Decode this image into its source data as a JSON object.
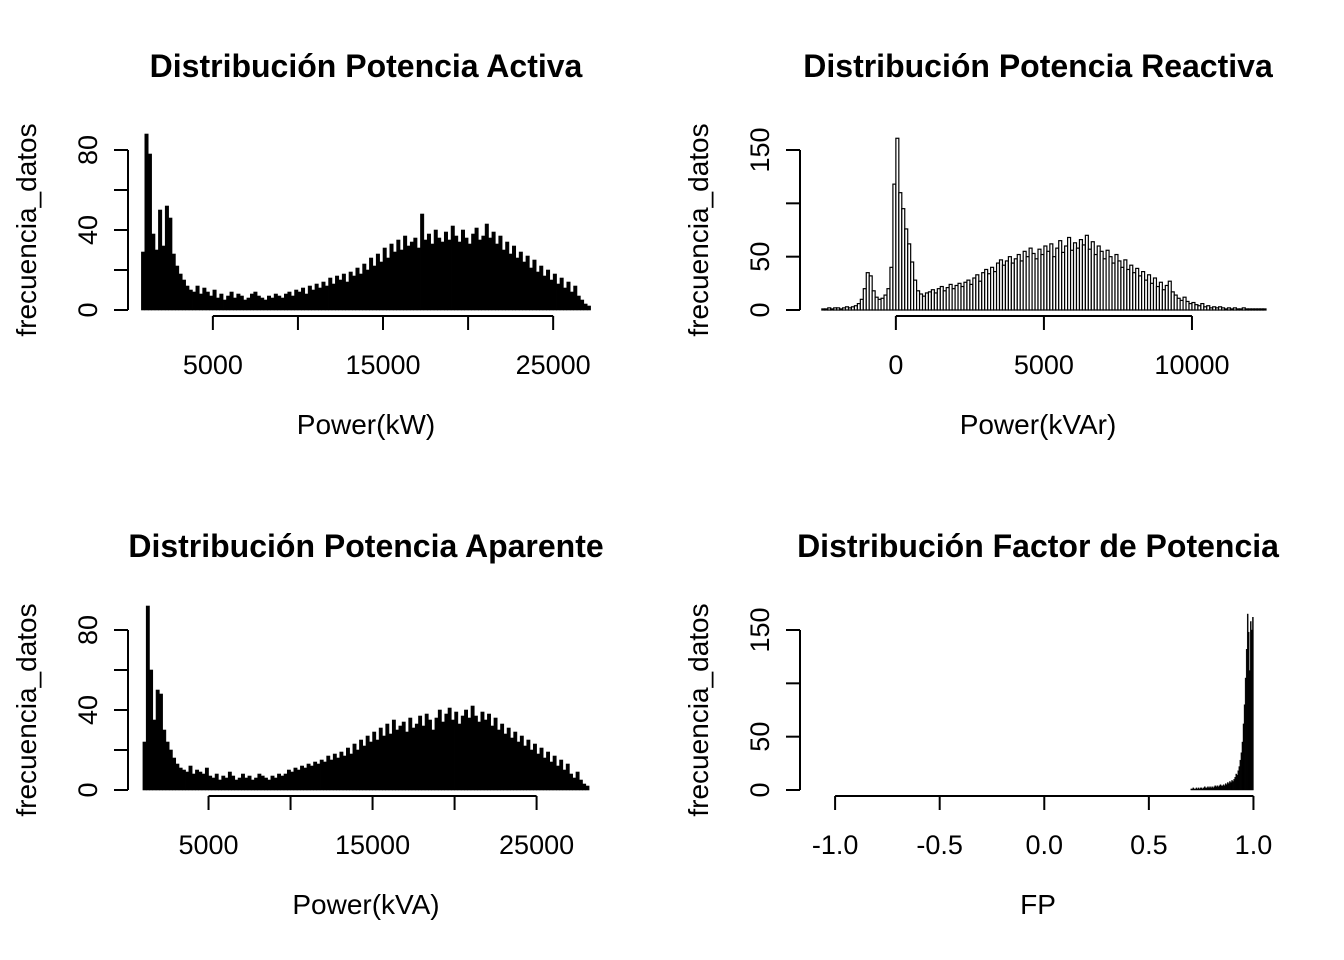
{
  "figure": {
    "background": "#ffffff",
    "foreground": "#000000",
    "layout": "2x2-histogram-grid"
  },
  "chart_data": [
    {
      "type": "bar",
      "subtype": "histogram",
      "title": "Distribución Potencia Activa",
      "xlabel": "Power(kW)",
      "ylabel": "frecuencia_datos",
      "bar_style": "solid",
      "grid": false,
      "legend": null,
      "bin_start": 800,
      "bin_width": 200,
      "xlim": [
        600,
        27400
      ],
      "ylim": [
        0,
        80
      ],
      "x_ticks": [
        5000,
        10000,
        15000,
        20000,
        25000
      ],
      "x_tick_labels": [
        "5000",
        "",
        "15000",
        "",
        "25000"
      ],
      "y_ticks": [
        0,
        20,
        40,
        60,
        80
      ],
      "y_tick_labels": [
        "0",
        "",
        "40",
        "",
        "80"
      ],
      "values": [
        29,
        88,
        78,
        38,
        30,
        50,
        32,
        52,
        46,
        28,
        22,
        18,
        15,
        12,
        10,
        9,
        12,
        8,
        11,
        9,
        7,
        10,
        6,
        8,
        5,
        7,
        9,
        6,
        8,
        7,
        5,
        6,
        8,
        9,
        7,
        6,
        5,
        7,
        6,
        8,
        7,
        6,
        8,
        9,
        7,
        10,
        9,
        11,
        8,
        12,
        10,
        13,
        11,
        14,
        12,
        16,
        13,
        17,
        15,
        18,
        14,
        19,
        17,
        21,
        18,
        23,
        20,
        26,
        22,
        28,
        24,
        31,
        26,
        33,
        29,
        35,
        30,
        37,
        32,
        34,
        36,
        31,
        48,
        35,
        38,
        33,
        40,
        36,
        34,
        39,
        35,
        42,
        37,
        34,
        40,
        36,
        33,
        38,
        41,
        35,
        37,
        43,
        36,
        39,
        33,
        37,
        30,
        34,
        28,
        32,
        26,
        29,
        24,
        27,
        21,
        25,
        19,
        22,
        17,
        20,
        15,
        18,
        13,
        16,
        11,
        14,
        9,
        12,
        7,
        5,
        3,
        2
      ]
    },
    {
      "type": "bar",
      "subtype": "histogram",
      "title": "Distribución Potencia Reactiva",
      "xlabel": "Power(kVAr)",
      "ylabel": "frecuencia_datos",
      "bar_style": "outline",
      "grid": false,
      "legend": null,
      "bin_start": -2500,
      "bin_width": 100,
      "xlim": [
        -2900,
        12500
      ],
      "ylim": [
        0,
        150
      ],
      "x_ticks": [
        0,
        5000,
        10000
      ],
      "x_tick_labels": [
        "0",
        "5000",
        "10000"
      ],
      "y_ticks": [
        0,
        50,
        100,
        150
      ],
      "y_tick_labels": [
        "0",
        "50",
        "",
        "150"
      ],
      "values": [
        1,
        1,
        2,
        1,
        2,
        2,
        1,
        2,
        3,
        2,
        3,
        4,
        6,
        10,
        20,
        35,
        32,
        18,
        12,
        10,
        11,
        14,
        20,
        40,
        118,
        161,
        110,
        95,
        76,
        62,
        45,
        28,
        18,
        15,
        13,
        16,
        17,
        19,
        16,
        20,
        22,
        18,
        21,
        24,
        20,
        23,
        25,
        22,
        26,
        28,
        24,
        30,
        33,
        27,
        35,
        38,
        34,
        40,
        36,
        44,
        47,
        42,
        46,
        50,
        44,
        48,
        52,
        46,
        55,
        50,
        58,
        53,
        48,
        57,
        52,
        60,
        55,
        62,
        50,
        58,
        65,
        54,
        60,
        68,
        56,
        63,
        58,
        66,
        61,
        70,
        57,
        64,
        52,
        60,
        55,
        48,
        56,
        50,
        44,
        52,
        46,
        40,
        47,
        38,
        42,
        35,
        39,
        32,
        36,
        28,
        33,
        25,
        30,
        22,
        26,
        19,
        23,
        27,
        17,
        14,
        11,
        9,
        12,
        8,
        6,
        7,
        5,
        4,
        6,
        3,
        4,
        2,
        3,
        2,
        3,
        2,
        1,
        2,
        1,
        2,
        1,
        1,
        2,
        1,
        1,
        1,
        1,
        1,
        1,
        1
      ]
    },
    {
      "type": "bar",
      "subtype": "histogram",
      "title": "Distribución Potencia Aparente",
      "xlabel": "Power(kVA)",
      "ylabel": "frecuencia_datos",
      "bar_style": "solid",
      "grid": false,
      "legend": null,
      "bin_start": 1000,
      "bin_width": 200,
      "xlim": [
        700,
        28500
      ],
      "ylim": [
        0,
        80
      ],
      "x_ticks": [
        5000,
        10000,
        15000,
        20000,
        25000
      ],
      "x_tick_labels": [
        "5000",
        "",
        "15000",
        "",
        "25000"
      ],
      "y_ticks": [
        0,
        20,
        40,
        60,
        80
      ],
      "y_tick_labels": [
        "0",
        "",
        "40",
        "",
        "80"
      ],
      "values": [
        24,
        92,
        60,
        35,
        50,
        48,
        30,
        24,
        20,
        16,
        13,
        11,
        10,
        9,
        12,
        8,
        10,
        9,
        8,
        11,
        7,
        6,
        8,
        5,
        7,
        6,
        9,
        7,
        5,
        6,
        8,
        6,
        7,
        5,
        6,
        8,
        7,
        6,
        5,
        7,
        6,
        8,
        7,
        8,
        10,
        9,
        11,
        10,
        12,
        11,
        13,
        12,
        14,
        13,
        15,
        14,
        17,
        15,
        18,
        16,
        19,
        17,
        21,
        18,
        23,
        20,
        25,
        22,
        27,
        24,
        29,
        25,
        31,
        27,
        33,
        28,
        35,
        30,
        32,
        34,
        29,
        36,
        31,
        33,
        37,
        32,
        38,
        35,
        30,
        36,
        40,
        34,
        38,
        41,
        35,
        39,
        33,
        37,
        40,
        36,
        42,
        37,
        34,
        39,
        35,
        38,
        32,
        36,
        30,
        33,
        28,
        31,
        26,
        29,
        24,
        27,
        22,
        25,
        20,
        23,
        18,
        21,
        16,
        19,
        14,
        17,
        12,
        15,
        10,
        13,
        8,
        6,
        9,
        5,
        3,
        2
      ]
    },
    {
      "type": "bar",
      "subtype": "histogram",
      "title": "Distribución Factor de Potencia",
      "xlabel": "FP",
      "ylabel": "frecuencia_datos",
      "bar_style": "solid-thin",
      "grid": false,
      "legend": null,
      "bin_start": 0.7,
      "bin_width": 0.005,
      "xlim": [
        -1.12,
        1.06
      ],
      "ylim": [
        0,
        150
      ],
      "x_ticks": [
        -1.0,
        -0.5,
        0.0,
        0.5,
        1.0
      ],
      "x_tick_labels": [
        "-1.0",
        "-0.5",
        "0.0",
        "0.5",
        "1.0"
      ],
      "y_ticks": [
        0,
        50,
        100,
        150
      ],
      "y_tick_labels": [
        "0",
        "50",
        "",
        "150"
      ],
      "values": [
        1,
        1,
        2,
        1,
        1,
        2,
        1,
        2,
        1,
        2,
        2,
        1,
        2,
        3,
        2,
        2,
        3,
        2,
        3,
        2,
        3,
        2,
        3,
        4,
        3,
        4,
        3,
        4,
        5,
        4,
        4,
        5,
        4,
        6,
        5,
        7,
        6,
        8,
        7,
        9,
        8,
        10,
        12,
        15,
        14,
        18,
        22,
        28,
        35,
        45,
        62,
        80,
        105,
        132,
        165,
        148,
        112,
        158,
        150,
        162
      ]
    }
  ]
}
